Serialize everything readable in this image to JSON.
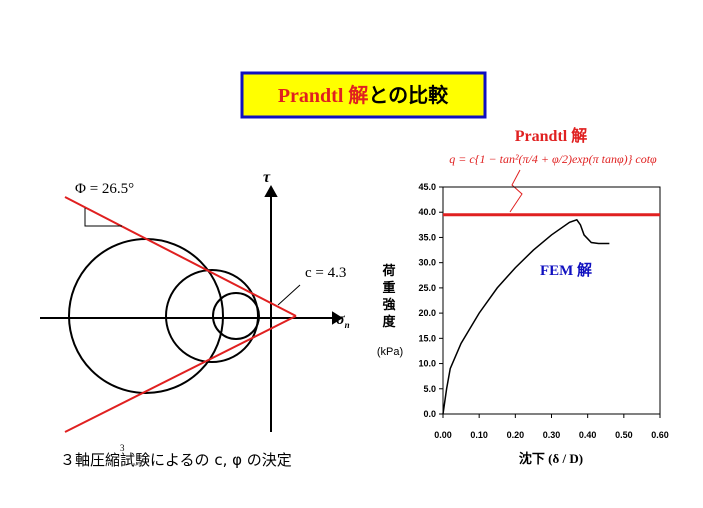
{
  "slide_title": {
    "highlight": "Prandtl 解",
    "rest": "との比較"
  },
  "mohr_diagram": {
    "phi_label": "Φ = 26.5°",
    "c_label": "c = 4.3",
    "tau_label": "τ",
    "sigma_label": "σ",
    "sigma_sub": "n",
    "caption": "３軸圧縮試験によるの c, φ の決定",
    "page_number": "3"
  },
  "chart_data": {
    "type": "line",
    "annotations": {
      "prandtl_title": "Prandtl 解",
      "formula": "q = c{1 − tan²(π/4 + φ/2)exp(π tanφ)} cotφ",
      "fem_label": "FEM 解"
    },
    "x_label": "沈下 (δ / D)",
    "y_label": "荷重強度",
    "y_unit": "(kPa)",
    "xlim": [
      0,
      0.6
    ],
    "ylim": [
      0,
      45
    ],
    "xticks": [
      {
        "value": 0,
        "label": "0.00"
      },
      {
        "value": 0.1,
        "label": "0.10"
      },
      {
        "value": 0.2,
        "label": "0.20"
      },
      {
        "value": 0.3,
        "label": "0.30"
      },
      {
        "value": 0.4,
        "label": "0.40"
      },
      {
        "value": 0.5,
        "label": "0.50"
      },
      {
        "value": 0.6,
        "label": "0.60"
      }
    ],
    "yticks": [
      {
        "value": 0,
        "label": "0.0"
      },
      {
        "value": 5,
        "label": "5.0"
      },
      {
        "value": 10,
        "label": "10.0"
      },
      {
        "value": 15,
        "label": "15.0"
      },
      {
        "value": 20,
        "label": "20.0"
      },
      {
        "value": 25,
        "label": "25.0"
      },
      {
        "value": 30,
        "label": "30.0"
      },
      {
        "value": 35,
        "label": "35.0"
      },
      {
        "value": 40,
        "label": "40.0"
      },
      {
        "value": 45,
        "label": "45.0"
      }
    ],
    "series": [
      {
        "color": "#000000",
        "x": [
          0,
          0.01,
          0.02,
          0.05,
          0.1,
          0.15,
          0.2,
          0.25,
          0.3,
          0.35,
          0.37,
          0.38,
          0.39,
          0.41,
          0.43,
          0.46
        ],
        "values": [
          0,
          5,
          9,
          14,
          20,
          25,
          29,
          32.5,
          35.5,
          38,
          38.5,
          37.5,
          35.5,
          34,
          33.8,
          33.8
        ]
      },
      {
        "color": "#e02020",
        "x": [
          0,
          0.6
        ],
        "values": [
          39.5,
          39.5
        ]
      }
    ]
  }
}
